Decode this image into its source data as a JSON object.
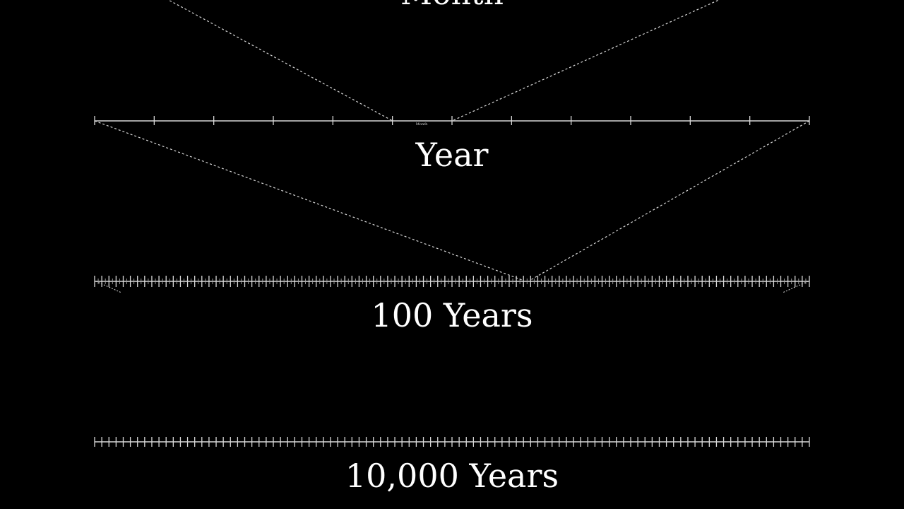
{
  "colors": {
    "background": "#000000",
    "line": "#d8d8d8",
    "tick": "#d8d8d8",
    "label": "#ffffff"
  },
  "diagram": {
    "top_label": "Month",
    "timelines": [
      {
        "id": "year",
        "label": "Year",
        "divisions": 12,
        "division_unit": "Month",
        "highlighted_division": 6,
        "inner_label": "Month"
      },
      {
        "id": "century",
        "label": "100 Years",
        "divisions": 100,
        "division_unit": "Year",
        "highlighted_division": 60,
        "inner_label": "Year"
      },
      {
        "id": "tenk",
        "label": "10,000 Years",
        "divisions": 100,
        "division_unit": "100 Years",
        "highlighted_division": null,
        "inner_label": ""
      }
    ]
  }
}
